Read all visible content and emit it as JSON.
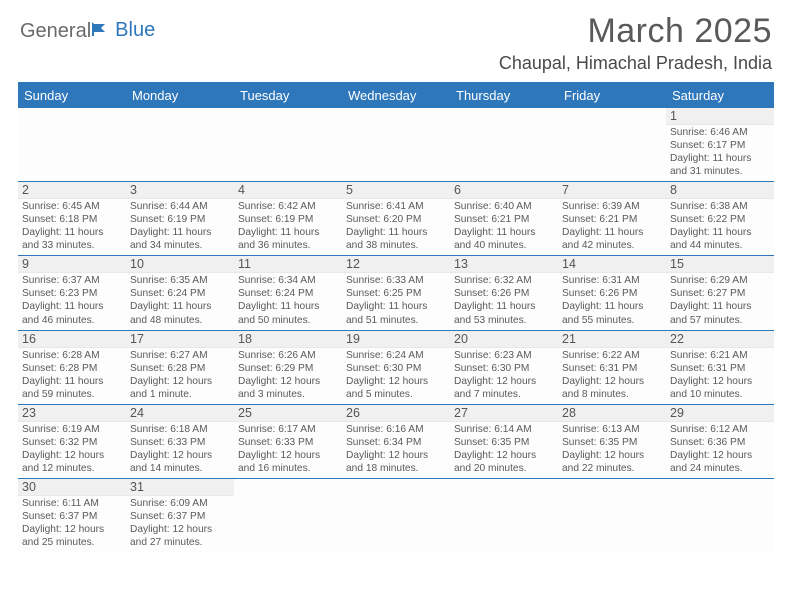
{
  "brand": {
    "general": "General",
    "blue": "Blue"
  },
  "title": "March 2025",
  "location": "Chaupal, Himachal Pradesh, India",
  "colors": {
    "accent": "#2e77bb",
    "text": "#4a4a4a",
    "header_text": "#5a5a5a",
    "bg": "#ffffff"
  },
  "dow": [
    "Sunday",
    "Monday",
    "Tuesday",
    "Wednesday",
    "Thursday",
    "Friday",
    "Saturday"
  ],
  "weeks": [
    [
      null,
      null,
      null,
      null,
      null,
      null,
      {
        "n": "1",
        "sr": "6:46 AM",
        "ss": "6:17 PM",
        "dl": "11 hours and 31 minutes."
      }
    ],
    [
      {
        "n": "2",
        "sr": "6:45 AM",
        "ss": "6:18 PM",
        "dl": "11 hours and 33 minutes."
      },
      {
        "n": "3",
        "sr": "6:44 AM",
        "ss": "6:19 PM",
        "dl": "11 hours and 34 minutes."
      },
      {
        "n": "4",
        "sr": "6:42 AM",
        "ss": "6:19 PM",
        "dl": "11 hours and 36 minutes."
      },
      {
        "n": "5",
        "sr": "6:41 AM",
        "ss": "6:20 PM",
        "dl": "11 hours and 38 minutes."
      },
      {
        "n": "6",
        "sr": "6:40 AM",
        "ss": "6:21 PM",
        "dl": "11 hours and 40 minutes."
      },
      {
        "n": "7",
        "sr": "6:39 AM",
        "ss": "6:21 PM",
        "dl": "11 hours and 42 minutes."
      },
      {
        "n": "8",
        "sr": "6:38 AM",
        "ss": "6:22 PM",
        "dl": "11 hours and 44 minutes."
      }
    ],
    [
      {
        "n": "9",
        "sr": "6:37 AM",
        "ss": "6:23 PM",
        "dl": "11 hours and 46 minutes."
      },
      {
        "n": "10",
        "sr": "6:35 AM",
        "ss": "6:24 PM",
        "dl": "11 hours and 48 minutes."
      },
      {
        "n": "11",
        "sr": "6:34 AM",
        "ss": "6:24 PM",
        "dl": "11 hours and 50 minutes."
      },
      {
        "n": "12",
        "sr": "6:33 AM",
        "ss": "6:25 PM",
        "dl": "11 hours and 51 minutes."
      },
      {
        "n": "13",
        "sr": "6:32 AM",
        "ss": "6:26 PM",
        "dl": "11 hours and 53 minutes."
      },
      {
        "n": "14",
        "sr": "6:31 AM",
        "ss": "6:26 PM",
        "dl": "11 hours and 55 minutes."
      },
      {
        "n": "15",
        "sr": "6:29 AM",
        "ss": "6:27 PM",
        "dl": "11 hours and 57 minutes."
      }
    ],
    [
      {
        "n": "16",
        "sr": "6:28 AM",
        "ss": "6:28 PM",
        "dl": "11 hours and 59 minutes."
      },
      {
        "n": "17",
        "sr": "6:27 AM",
        "ss": "6:28 PM",
        "dl": "12 hours and 1 minute."
      },
      {
        "n": "18",
        "sr": "6:26 AM",
        "ss": "6:29 PM",
        "dl": "12 hours and 3 minutes."
      },
      {
        "n": "19",
        "sr": "6:24 AM",
        "ss": "6:30 PM",
        "dl": "12 hours and 5 minutes."
      },
      {
        "n": "20",
        "sr": "6:23 AM",
        "ss": "6:30 PM",
        "dl": "12 hours and 7 minutes."
      },
      {
        "n": "21",
        "sr": "6:22 AM",
        "ss": "6:31 PM",
        "dl": "12 hours and 8 minutes."
      },
      {
        "n": "22",
        "sr": "6:21 AM",
        "ss": "6:31 PM",
        "dl": "12 hours and 10 minutes."
      }
    ],
    [
      {
        "n": "23",
        "sr": "6:19 AM",
        "ss": "6:32 PM",
        "dl": "12 hours and 12 minutes."
      },
      {
        "n": "24",
        "sr": "6:18 AM",
        "ss": "6:33 PM",
        "dl": "12 hours and 14 minutes."
      },
      {
        "n": "25",
        "sr": "6:17 AM",
        "ss": "6:33 PM",
        "dl": "12 hours and 16 minutes."
      },
      {
        "n": "26",
        "sr": "6:16 AM",
        "ss": "6:34 PM",
        "dl": "12 hours and 18 minutes."
      },
      {
        "n": "27",
        "sr": "6:14 AM",
        "ss": "6:35 PM",
        "dl": "12 hours and 20 minutes."
      },
      {
        "n": "28",
        "sr": "6:13 AM",
        "ss": "6:35 PM",
        "dl": "12 hours and 22 minutes."
      },
      {
        "n": "29",
        "sr": "6:12 AM",
        "ss": "6:36 PM",
        "dl": "12 hours and 24 minutes."
      }
    ],
    [
      {
        "n": "30",
        "sr": "6:11 AM",
        "ss": "6:37 PM",
        "dl": "12 hours and 25 minutes."
      },
      {
        "n": "31",
        "sr": "6:09 AM",
        "ss": "6:37 PM",
        "dl": "12 hours and 27 minutes."
      },
      null,
      null,
      null,
      null,
      null
    ]
  ],
  "labels": {
    "sunrise": "Sunrise:",
    "sunset": "Sunset:",
    "daylight": "Daylight:"
  }
}
